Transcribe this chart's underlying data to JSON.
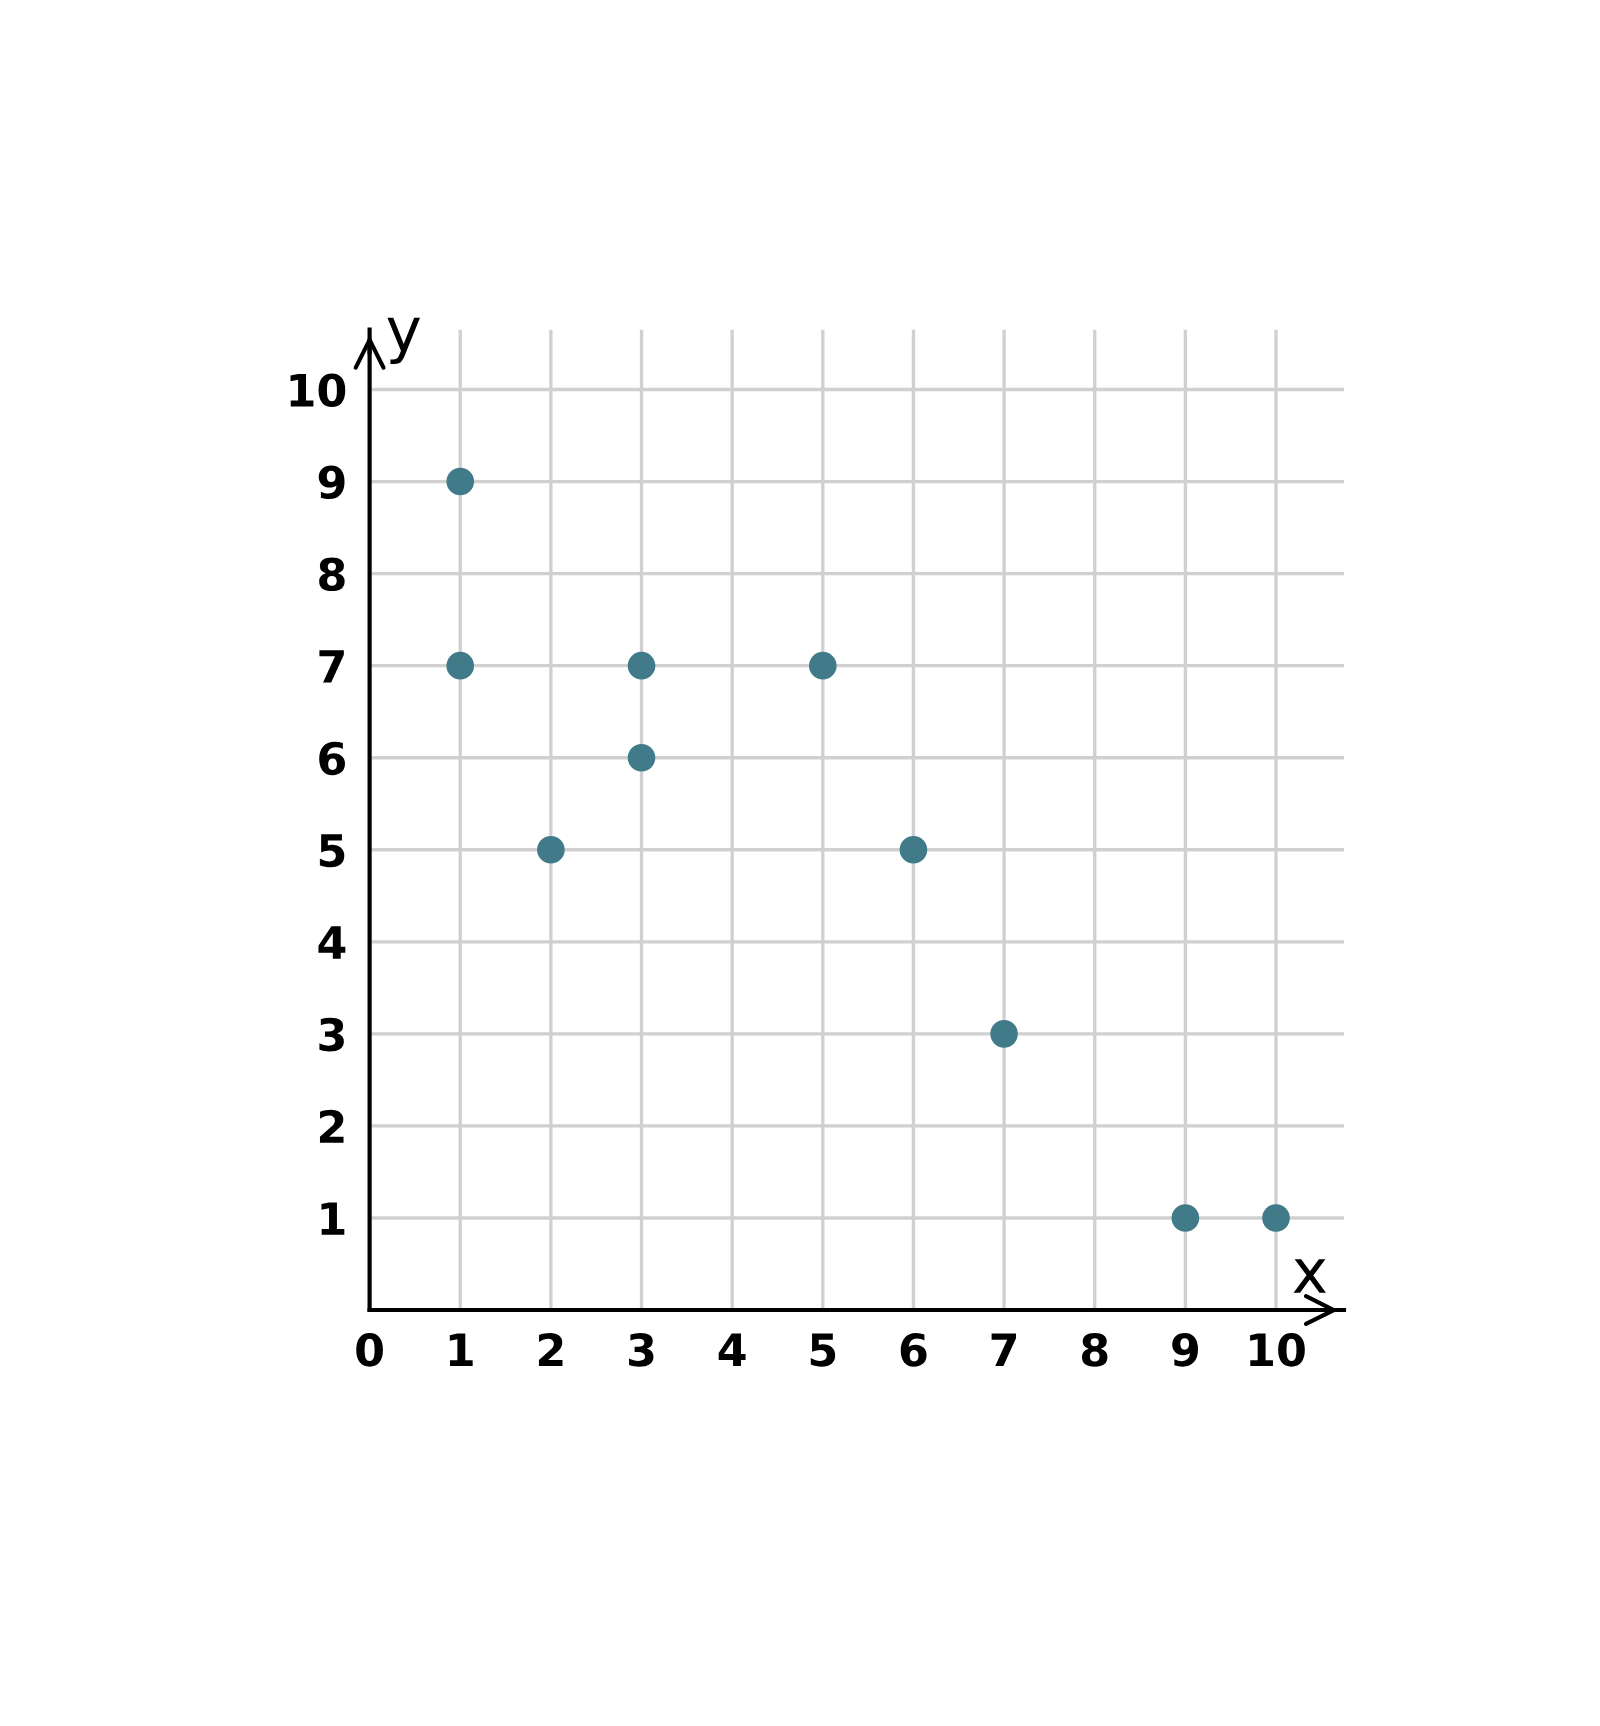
{
  "chart_data": {
    "type": "scatter",
    "xlabel": "x",
    "ylabel": "y",
    "x": [
      1,
      1,
      2,
      3,
      3,
      5,
      6,
      7,
      9,
      10
    ],
    "series": [
      {
        "color": "#417b8a",
        "values": [
          9,
          7,
          5,
          7,
          6,
          7,
          5,
          3,
          1,
          1
        ]
      }
    ],
    "xlim": [
      0,
      10.75
    ],
    "ylim": [
      0,
      10.65
    ],
    "xticks": [
      0,
      1,
      2,
      3,
      4,
      5,
      6,
      7,
      8,
      9,
      10
    ],
    "yticks": [
      1,
      2,
      3,
      4,
      5,
      6,
      7,
      8,
      9,
      10
    ],
    "grid": true,
    "marker": "circle"
  }
}
